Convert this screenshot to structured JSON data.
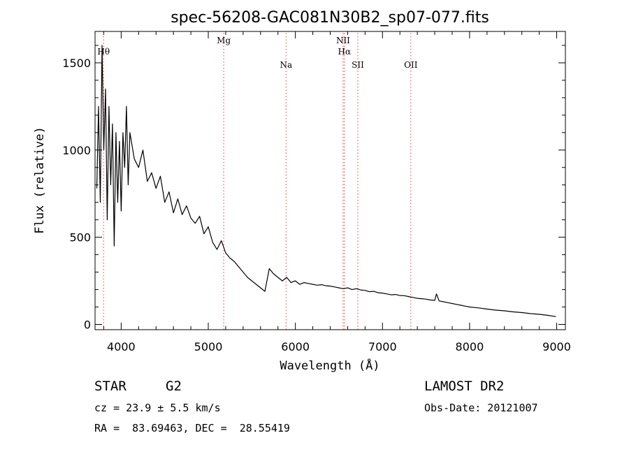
{
  "chart_data": {
    "type": "line",
    "title": "spec-56208-GAC081N30B2_sp07-077.fits",
    "xlabel": "Wavelength (Å)",
    "ylabel": "Flux (relative)",
    "xlim": [
      3700,
      9100
    ],
    "ylim": [
      -30,
      1680
    ],
    "xticks": [
      4000,
      5000,
      6000,
      7000,
      8000,
      9000
    ],
    "yticks": [
      0,
      500,
      1000,
      1500
    ],
    "grid": false,
    "line_color": "#000000",
    "marker_color": "#ff3333",
    "spectrum": {
      "x": [
        3720,
        3740,
        3760,
        3780,
        3800,
        3820,
        3840,
        3860,
        3880,
        3900,
        3920,
        3940,
        3960,
        3980,
        4000,
        4020,
        4040,
        4060,
        4080,
        4100,
        4150,
        4200,
        4250,
        4300,
        4350,
        4400,
        4450,
        4500,
        4550,
        4600,
        4650,
        4700,
        4750,
        4800,
        4850,
        4900,
        4950,
        5000,
        5050,
        5100,
        5150,
        5200,
        5250,
        5300,
        5350,
        5400,
        5450,
        5500,
        5550,
        5600,
        5650,
        5700,
        5750,
        5800,
        5850,
        5900,
        5950,
        6000,
        6050,
        6100,
        6150,
        6200,
        6250,
        6300,
        6350,
        6400,
        6450,
        6500,
        6550,
        6600,
        6650,
        6700,
        6750,
        6800,
        6850,
        6900,
        6950,
        7000,
        7050,
        7100,
        7150,
        7200,
        7250,
        7300,
        7350,
        7400,
        7450,
        7500,
        7550,
        7600,
        7620,
        7650,
        7700,
        7750,
        7800,
        7850,
        7900,
        7950,
        8000,
        8100,
        8200,
        8300,
        8400,
        8500,
        8600,
        8700,
        8800,
        8900,
        8990
      ],
      "y": [
        780,
        1250,
        700,
        1600,
        1000,
        1350,
        600,
        1250,
        800,
        1150,
        450,
        1100,
        700,
        1050,
        650,
        1100,
        900,
        1250,
        800,
        1100,
        950,
        900,
        1000,
        820,
        870,
        780,
        850,
        700,
        760,
        640,
        720,
        630,
        680,
        610,
        580,
        620,
        520,
        560,
        470,
        430,
        480,
        410,
        380,
        360,
        330,
        300,
        270,
        250,
        230,
        210,
        190,
        320,
        290,
        270,
        250,
        270,
        240,
        250,
        230,
        240,
        235,
        230,
        225,
        228,
        222,
        220,
        215,
        210,
        205,
        210,
        200,
        205,
        198,
        195,
        188,
        190,
        182,
        180,
        175,
        170,
        172,
        166,
        165,
        160,
        155,
        150,
        148,
        145,
        140,
        138,
        175,
        135,
        130,
        125,
        120,
        115,
        110,
        105,
        100,
        95,
        88,
        82,
        78,
        72,
        68,
        62,
        58,
        52,
        45
      ]
    },
    "lines": [
      {
        "label": "Hθ",
        "x": 3798,
        "label_row": 1
      },
      {
        "label": "Mg",
        "x": 5177,
        "label_row": 0
      },
      {
        "label": "Na",
        "x": 5893,
        "label_row": 2
      },
      {
        "label": "NII",
        "x": 6548,
        "label_row": 0
      },
      {
        "label": "Hα",
        "x": 6563,
        "label_row": 1
      },
      {
        "label": "SII",
        "x": 6717,
        "label_row": 2
      },
      {
        "label": "OII",
        "x": 7325,
        "label_row": 2
      }
    ]
  },
  "info": {
    "class_label": "STAR",
    "subclass": "G2",
    "survey": "LAMOST DR2",
    "cz": "cz = 23.9 ± 5.5 km/s",
    "obs_date": "Obs-Date: 20121007",
    "coords": "RA =  83.69463, DEC =  28.55419"
  }
}
